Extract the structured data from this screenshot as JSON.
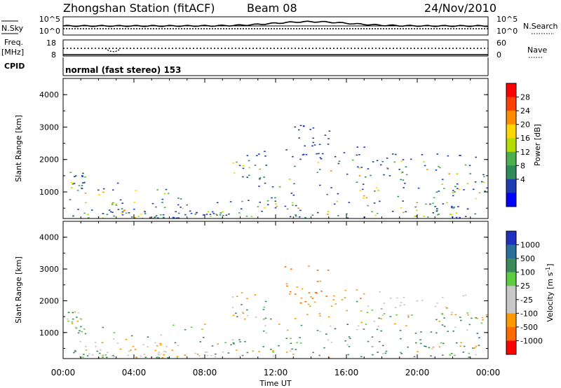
{
  "header": {
    "station": "Zhongshan Station (fitACF)",
    "beam": "Beam 08",
    "date": "24/Nov/2010"
  },
  "status_panels": {
    "nsky_label": "N.Sky",
    "nsky_ticks": [
      "10^5",
      "10^0"
    ],
    "nsearch_label": "N.Search",
    "nsearch_ticks": [
      "10^5",
      "10^0"
    ],
    "freq_label": "Freq.",
    "freq_unit": "[MHz]",
    "freq_ticks": [
      "18",
      "8"
    ],
    "nave_label": "Nave",
    "nave_ticks": [
      "60",
      "0"
    ],
    "cpid_label": "CPID",
    "cpid_text": "normal (fast stereo) 153"
  },
  "x_axis": {
    "label": "Time UT",
    "ticks": [
      "00:00",
      "04:00",
      "08:00",
      "12:00",
      "16:00",
      "20:00",
      "00:00"
    ]
  },
  "colorbars": {
    "power": {
      "label": "Power [dB]",
      "ticks": [
        "28",
        "24",
        "20",
        "16",
        "12",
        "8",
        "4"
      ],
      "colors": [
        "#ff0000",
        "#ff4000",
        "#ff8c00",
        "#ffd700",
        "#b4dc00",
        "#4caf50",
        "#2e8b57",
        "#1e3cb4",
        "#0000ff"
      ]
    },
    "velocity": {
      "label": "Velocity [m s",
      "label_sup": "-1",
      "label_end": "]",
      "ticks": [
        "1000",
        "500",
        "100",
        "25",
        "-25",
        "-100",
        "-500",
        "-1000"
      ],
      "colors": [
        "#2030c0",
        "#2a6e9c",
        "#3b8a5a",
        "#5ccd40",
        "#c8c8c8",
        "#c8c8c8",
        "#ff9900",
        "#ff6a00",
        "#ff0000"
      ]
    }
  },
  "chart_data": [
    {
      "type": "heatmap",
      "title": "Power",
      "ylabel": "Slant Range [km]",
      "xlabel": "",
      "xlim": [
        0,
        24
      ],
      "ylim": [
        180,
        4500
      ],
      "yticks": [
        "4000",
        "3000",
        "2000",
        "1000"
      ],
      "colorbar_label": "Power [dB]",
      "colorbar_range": [
        0,
        32
      ],
      "color_levels": [
        4,
        8,
        12,
        16,
        20,
        24,
        28
      ]
    },
    {
      "type": "heatmap",
      "title": "Velocity",
      "ylabel": "Slant Range [km]",
      "xlabel": "Time UT",
      "xlim": [
        0,
        24
      ],
      "ylim": [
        180,
        4500
      ],
      "yticks": [
        "4000",
        "3000",
        "2000",
        "1000"
      ],
      "colorbar_label": "Velocity [m s-1]",
      "color_levels": [
        1000,
        500,
        100,
        25,
        -25,
        -100,
        -500,
        -1000
      ]
    }
  ]
}
